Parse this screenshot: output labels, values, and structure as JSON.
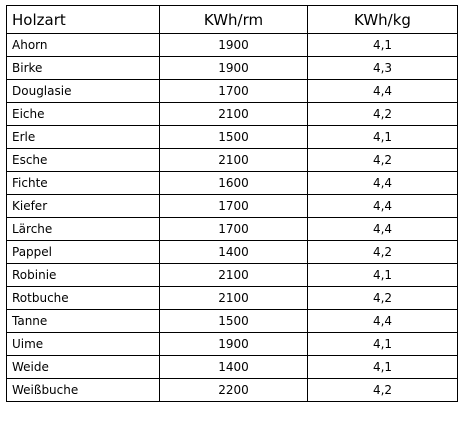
{
  "table": {
    "headers": [
      "Holzart",
      "KWh/rm",
      "KWh/kg"
    ],
    "rows": [
      [
        "Ahorn",
        "1900",
        "4,1"
      ],
      [
        "Birke",
        "1900",
        "4,3"
      ],
      [
        "Douglasie",
        "1700",
        "4,4"
      ],
      [
        "Eiche",
        "2100",
        "4,2"
      ],
      [
        "Erle",
        "1500",
        "4,1"
      ],
      [
        "Esche",
        "2100",
        "4,2"
      ],
      [
        "Fichte",
        "1600",
        "4,4"
      ],
      [
        "Kiefer",
        "1700",
        "4,4"
      ],
      [
        "Lärche",
        "1700",
        "4,4"
      ],
      [
        "Pappel",
        "1400",
        "4,2"
      ],
      [
        "Robinie",
        "2100",
        "4,1"
      ],
      [
        "Rotbuche",
        "2100",
        "4,2"
      ],
      [
        "Tanne",
        "1500",
        "4,4"
      ],
      [
        "Uime",
        "1900",
        "4,1"
      ],
      [
        "Weide",
        "1400",
        "4,1"
      ],
      [
        "Weißbuche",
        "2200",
        "4,2"
      ]
    ]
  }
}
